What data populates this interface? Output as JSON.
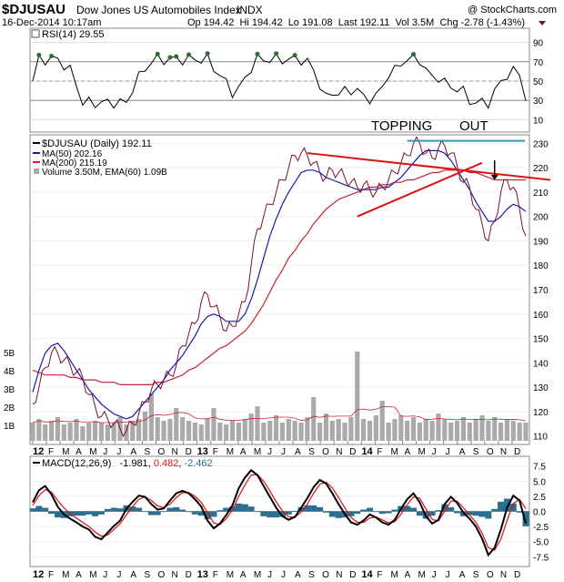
{
  "header": {
    "symbol": "$DJUSAU",
    "name": "Dow Jones US Automobiles Index",
    "exchange": "INDX",
    "copyright": "@ StockCharts.com",
    "timestamp": "16-Dec-2014 10:17am",
    "quote": "Op 194.42  Hi 194.42  Lo 191.08  Last 192.11  Vol 3.5M  Chg -2.78 (-1.43%)"
  },
  "colors": {
    "price": "#7a1030",
    "ma50": "#1a1aaa",
    "ma200": "#cc2233",
    "trend": "#dd1111",
    "top_line": "#3399aa",
    "macd": "#000000",
    "signal": "#dd1111",
    "hist": "#2a6f8f",
    "volume": "#aaaaaa",
    "rsi_fill": "#2e6e2e"
  },
  "chart_data": [
    {
      "type": "line",
      "panel": "rsi",
      "label": "RSI(14) 29.55",
      "ylim": [
        0,
        100
      ],
      "yticks": [
        10,
        30,
        50,
        70,
        90
      ],
      "overbought": 70,
      "oversold": 30,
      "last": 29.55
    },
    {
      "type": "line",
      "panel": "price",
      "title": "$DJUSAU (Daily) 192.11",
      "ylim": [
        108,
        232
      ],
      "yticks": [
        110,
        120,
        130,
        140,
        150,
        160,
        170,
        180,
        190,
        200,
        210,
        220,
        230
      ],
      "legend": [
        "$DJUSAU (Daily) 192.11",
        "MA(50) 202.16",
        "MA(200) 215.19",
        "Volume 3.50M, EMA(60) 1.09B"
      ],
      "volume_ticks": [
        "1B",
        "2B",
        "3B",
        "4B",
        "5B"
      ],
      "x_labels": [
        "12",
        "F",
        "M",
        "A",
        "M",
        "J",
        "J",
        "A",
        "S",
        "O",
        "N",
        "D",
        "13",
        "F",
        "M",
        "A",
        "M",
        "J",
        "J",
        "A",
        "S",
        "O",
        "N",
        "D",
        "14",
        "F",
        "M",
        "A",
        "M",
        "J",
        "J",
        "A",
        "S",
        "O",
        "N",
        "D"
      ],
      "annotations": [
        "TOPPING",
        "OUT"
      ],
      "series": [
        {
          "name": "Close",
          "values": [
            123,
            130,
            138,
            144,
            144,
            141,
            139,
            136,
            134,
            127,
            122,
            118,
            117,
            115,
            113,
            112,
            115,
            119,
            124,
            129,
            131,
            133,
            135,
            139,
            147,
            152,
            156,
            165,
            168,
            163,
            159,
            153,
            155,
            160,
            165,
            180,
            195,
            200,
            205,
            210,
            215,
            220,
            225,
            226,
            225,
            222,
            218,
            216,
            219,
            218,
            216,
            214,
            212,
            213,
            211,
            210,
            212,
            215,
            218,
            222,
            225,
            230,
            230,
            226,
            224,
            228,
            229,
            226,
            221,
            214,
            212,
            203,
            197,
            190,
            198,
            210,
            215,
            212,
            203,
            192
          ]
        },
        {
          "name": "MA(50)",
          "values": [
            128,
            137,
            144,
            147,
            148,
            145,
            141,
            137,
            133,
            129,
            126,
            123,
            121,
            119,
            118,
            117,
            118,
            121,
            124,
            127,
            130,
            133,
            137,
            140,
            143,
            147,
            151,
            156,
            159,
            160,
            159,
            157,
            157,
            157,
            160,
            166,
            174,
            183,
            192,
            199,
            205,
            210,
            214,
            218,
            219,
            219,
            218,
            216,
            215,
            214,
            213,
            212,
            211,
            211,
            211,
            211,
            212,
            212,
            214,
            216,
            219,
            222,
            225,
            227,
            227,
            227,
            226,
            223,
            219,
            215,
            211,
            206,
            202,
            198,
            198,
            200,
            203,
            205,
            204,
            202
          ]
        },
        {
          "name": "MA(200)",
          "values": [
            137,
            136,
            135,
            135,
            135,
            135,
            134,
            134,
            133,
            133,
            133,
            132,
            132,
            132,
            131,
            131,
            131,
            131,
            131,
            131,
            132,
            132,
            133,
            134,
            135,
            137,
            138,
            140,
            142,
            144,
            146,
            147,
            149,
            151,
            153,
            156,
            160,
            164,
            169,
            174,
            178,
            183,
            186,
            190,
            193,
            197,
            200,
            203,
            205,
            207,
            208,
            209,
            210,
            211,
            212,
            212,
            213,
            213,
            214,
            214,
            215,
            215,
            216,
            217,
            218,
            218,
            219,
            219,
            219,
            219,
            218,
            218,
            217,
            216,
            215,
            215,
            215,
            215,
            215,
            215
          ]
        },
        {
          "name": "Volume",
          "values": [
            1.0,
            1.2,
            0.9,
            1.1,
            1.3,
            0.9,
            1.0,
            1.2,
            0.8,
            1.0,
            1.1,
            1.0,
            0.9,
            1.0,
            1.3,
            0.9,
            1.1,
            1.2,
            1.6,
            2.6,
            1.3,
            1.1,
            1.2,
            1.8,
            1.3,
            1.1,
            1.0,
            0.9,
            1.2,
            1.8,
            1.0,
            0.9,
            1.1,
            1.0,
            1.2,
            1.5,
            1.9,
            1.0,
            1.1,
            1.4,
            1.0,
            1.2,
            1.1,
            1.0,
            1.3,
            2.4,
            1.0,
            1.5,
            1.1,
            1.2,
            1.0,
            1.3,
            4.9,
            1.2,
            1.1,
            1.4,
            2.2,
            1.0,
            1.2,
            1.4,
            1.1,
            1.3,
            1.0,
            1.2,
            1.1,
            1.5,
            1.2,
            1.0,
            1.1,
            1.3,
            1.0,
            1.2,
            1.4,
            1.1,
            1.3,
            1.0,
            1.2,
            1.1,
            1.0,
            1.0
          ]
        }
      ]
    },
    {
      "type": "line",
      "panel": "macd",
      "label": "MACD(12,26,9)",
      "values_text": [
        "-1.981",
        "0.482",
        "-2.462"
      ],
      "ylim": [
        -8.5,
        8.5
      ],
      "yticks": [
        -7.5,
        -5.0,
        -2.5,
        0.0,
        2.5,
        5.0,
        7.5
      ],
      "x_labels": [
        "12",
        "F",
        "M",
        "A",
        "M",
        "J",
        "J",
        "A",
        "S",
        "O",
        "N",
        "D",
        "13",
        "F",
        "M",
        "A",
        "M",
        "J",
        "J",
        "A",
        "S",
        "O",
        "N",
        "D",
        "14",
        "F",
        "M",
        "A",
        "M",
        "J",
        "J",
        "A",
        "S",
        "O",
        "N",
        "D"
      ],
      "series": [
        {
          "name": "MACD",
          "values": [
            1.5,
            3.5,
            4.2,
            2.8,
            0.8,
            -0.5,
            -1.2,
            -1.8,
            -2.5,
            -3.0,
            -4.2,
            -4.6,
            -3.5,
            -2.4,
            -1.5,
            0.4,
            1.6,
            2.6,
            2.4,
            1.2,
            0.3,
            0.5,
            1.8,
            3.0,
            3.4,
            3.0,
            2.0,
            0.8,
            -1.5,
            -2.8,
            -2.0,
            -0.6,
            1.0,
            3.8,
            5.6,
            6.8,
            6.0,
            4.2,
            2.4,
            0.6,
            -0.8,
            -1.4,
            -0.9,
            0.6,
            2.2,
            4.0,
            5.2,
            4.6,
            3.0,
            1.2,
            -0.4,
            -1.8,
            -2.2,
            -1.5,
            -0.5,
            -1.0,
            -1.8,
            -2.2,
            -1.4,
            0.4,
            2.0,
            3.0,
            1.5,
            -0.8,
            -2.0,
            -1.4,
            1.2,
            2.4,
            1.4,
            -0.2,
            -1.2,
            -2.5,
            -4.5,
            -7.2,
            -6.0,
            -3.0,
            0.6,
            2.6,
            1.8,
            -1.98
          ]
        },
        {
          "name": "Signal",
          "values": [
            1.0,
            2.6,
            3.6,
            3.2,
            1.8,
            0.6,
            -0.4,
            -1.1,
            -1.8,
            -2.5,
            -3.4,
            -4.1,
            -3.9,
            -3.0,
            -2.0,
            -0.6,
            0.8,
            2.0,
            2.4,
            1.8,
            0.9,
            0.6,
            1.2,
            2.3,
            3.1,
            3.1,
            2.5,
            1.5,
            -0.2,
            -1.9,
            -2.2,
            -1.2,
            0.2,
            2.5,
            4.4,
            6.0,
            6.1,
            5.0,
            3.4,
            1.6,
            0.1,
            -0.9,
            -1.0,
            -0.1,
            1.2,
            3.0,
            4.5,
            4.8,
            3.9,
            2.3,
            0.6,
            -1.0,
            -1.8,
            -1.8,
            -1.1,
            -0.9,
            -1.4,
            -1.9,
            -1.7,
            -0.5,
            1.1,
            2.4,
            2.2,
            0.4,
            -1.3,
            -1.6,
            0.0,
            1.7,
            1.7,
            0.6,
            -0.6,
            -1.8,
            -3.6,
            -6.0,
            -6.4,
            -4.6,
            -1.5,
            1.3,
            2.0,
            0.48
          ]
        }
      ]
    }
  ]
}
